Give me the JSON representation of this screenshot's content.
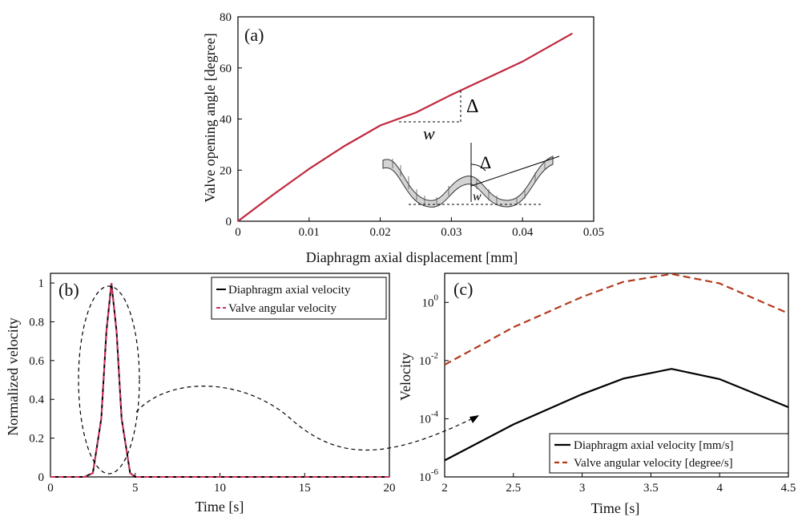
{
  "colors": {
    "angle": "#c0283c",
    "axial": "#000000",
    "angular_dashed": "#d2325a",
    "angular_log": "#b5391d",
    "annotation": "#000000"
  },
  "chart_data": [
    {
      "panel": "(a)",
      "type": "line",
      "xlabel": "Diaphragm axial displacement [mm]",
      "ylabel": "Valve opening angle [degree]",
      "xlim": [
        0,
        0.05
      ],
      "ylim": [
        0,
        80
      ],
      "xticks": [
        "0",
        "0.01",
        "0.02",
        "0.03",
        "0.04",
        "0.05"
      ],
      "yticks": [
        "0",
        "20",
        "40",
        "60",
        "80"
      ],
      "series": [
        {
          "x": [
            0,
            0.005,
            0.01,
            0.015,
            0.02,
            0.025,
            0.03,
            0.035,
            0.04,
            0.047
          ],
          "y": [
            0,
            10.5,
            20.5,
            29.5,
            37.5,
            42.5,
            49.5,
            56,
            62.5,
            73.5
          ]
        }
      ],
      "annotations": {
        "delta": "Δ",
        "w": "w"
      }
    },
    {
      "panel": "(b)",
      "type": "line",
      "xlabel": "Time [s]",
      "ylabel": "Normalized velocity",
      "xlim": [
        0,
        20
      ],
      "ylim": [
        0,
        1.05
      ],
      "xticks": [
        "0",
        "5",
        "10",
        "15",
        "20"
      ],
      "yticks": [
        "0",
        "0.2",
        "0.4",
        "0.6",
        "0.8",
        "1"
      ],
      "legend": "top-right",
      "series": [
        {
          "name": "Diaphragm axial velocity",
          "x": [
            0,
            2,
            2.5,
            3,
            3.3,
            3.6,
            3.9,
            4.2,
            4.7,
            5,
            20
          ],
          "y": [
            0,
            0,
            0.02,
            0.3,
            0.75,
            1.0,
            0.75,
            0.3,
            0.02,
            0,
            0
          ]
        },
        {
          "name": "Valve angular velocity",
          "x": [
            0,
            2,
            2.5,
            3,
            3.3,
            3.6,
            3.9,
            4.2,
            4.7,
            5,
            20
          ],
          "y": [
            0,
            0,
            0.02,
            0.3,
            0.75,
            1.0,
            0.75,
            0.3,
            0.02,
            0,
            0
          ]
        }
      ]
    },
    {
      "panel": "(c)",
      "type": "line",
      "xlabel": "Time [s]",
      "ylabel": "Velocity",
      "yscale": "log",
      "xlim": [
        2,
        4.5
      ],
      "ylim": [
        1e-06,
        10.0
      ],
      "xticks": [
        "2",
        "2.5",
        "3",
        "3.5",
        "4",
        "4.5"
      ],
      "yticks": [
        "10^-6",
        "10^-4",
        "10^-2",
        "10^0"
      ],
      "legend": "bottom-right",
      "series": [
        {
          "name": "Diaphragm axial velocity [mm/s]",
          "x": [
            2,
            2.5,
            3,
            3.3,
            3.65,
            4,
            4.5
          ],
          "y": [
            3.7e-06,
            6.4e-05,
            0.0007,
            0.0024,
            0.0052,
            0.0023,
            0.00025
          ]
        },
        {
          "name": "Valve angular velocity [degree/s]",
          "x": [
            2,
            2.5,
            3,
            3.3,
            3.65,
            4,
            4.5
          ],
          "y": [
            0.0072,
            0.14,
            1.55,
            5.1,
            9.5,
            4.5,
            0.42
          ]
        }
      ]
    }
  ]
}
